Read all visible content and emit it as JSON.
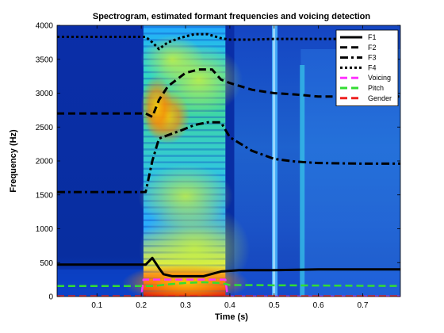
{
  "chart_data": {
    "type": "line",
    "title": "Spectrogram, estimated formant frequencies and voicing detection",
    "xlabel": "Time (s)",
    "ylabel": "Frequency (Hz)",
    "xlim": [
      0.01,
      0.785
    ],
    "ylim": [
      0,
      4000
    ],
    "xticks": [
      0.1,
      0.2,
      0.3,
      0.4,
      0.5,
      0.6,
      0.7
    ],
    "yticks": [
      0,
      500,
      1000,
      1500,
      2000,
      2500,
      3000,
      3500,
      4000
    ],
    "x_tick_labels": [
      "0.1",
      "0.2",
      "0.3",
      "0.4",
      "0.5",
      "0.6",
      "0.7"
    ],
    "y_tick_labels": [
      "0",
      "500",
      "1000",
      "1500",
      "2000",
      "2500",
      "3000",
      "3500",
      "4000"
    ],
    "background": "spectrogram",
    "legend_position": "top-right",
    "series": [
      {
        "name": "F1",
        "color": "#000000",
        "style": "solid",
        "x": [
          0.01,
          0.21,
          0.225,
          0.24,
          0.25,
          0.27,
          0.3,
          0.34,
          0.38,
          0.42,
          0.5,
          0.6,
          0.7,
          0.785
        ],
        "y": [
          470,
          470,
          570,
          420,
          330,
          300,
          300,
          300,
          370,
          390,
          390,
          400,
          400,
          400
        ]
      },
      {
        "name": "F2",
        "color": "#000000",
        "style": "dashed",
        "x": [
          0.01,
          0.21,
          0.225,
          0.24,
          0.26,
          0.28,
          0.3,
          0.33,
          0.36,
          0.38,
          0.4,
          0.45,
          0.5,
          0.55,
          0.6,
          0.7,
          0.785
        ],
        "y": [
          2700,
          2700,
          2650,
          2900,
          3100,
          3200,
          3300,
          3350,
          3350,
          3200,
          3150,
          3050,
          3000,
          2980,
          2950,
          2950,
          2950
        ]
      },
      {
        "name": "F3",
        "color": "#000000",
        "style": "dashdot",
        "x": [
          0.01,
          0.21,
          0.225,
          0.24,
          0.26,
          0.29,
          0.32,
          0.35,
          0.38,
          0.4,
          0.45,
          0.5,
          0.55,
          0.6,
          0.7,
          0.785
        ],
        "y": [
          1540,
          1540,
          2000,
          2330,
          2380,
          2450,
          2530,
          2570,
          2570,
          2350,
          2150,
          2030,
          1990,
          1970,
          1960,
          1960
        ]
      },
      {
        "name": "F4",
        "color": "#000000",
        "style": "dotted",
        "x": [
          0.01,
          0.21,
          0.225,
          0.24,
          0.26,
          0.29,
          0.32,
          0.35,
          0.38,
          0.4,
          0.45,
          0.5,
          0.6,
          0.7,
          0.785
        ],
        "y": [
          3830,
          3830,
          3750,
          3650,
          3750,
          3820,
          3870,
          3870,
          3810,
          3790,
          3790,
          3800,
          3800,
          3800,
          3800
        ]
      },
      {
        "name": "Voicing",
        "color": "#ff33ff",
        "style": "dashed",
        "x": [
          0.01,
          0.2,
          0.205,
          0.39,
          0.395,
          0.785
        ],
        "y": [
          0,
          0,
          250,
          250,
          0,
          0
        ]
      },
      {
        "name": "Pitch",
        "color": "#33dd33",
        "style": "dashed",
        "x": [
          0.01,
          0.2,
          0.23,
          0.26,
          0.3,
          0.34,
          0.38,
          0.4,
          0.785
        ],
        "y": [
          155,
          155,
          155,
          180,
          200,
          210,
          200,
          170,
          155
        ]
      },
      {
        "name": "Gender",
        "color": "#ee2222",
        "style": "dashed",
        "x": [
          0.01,
          0.785
        ],
        "y": [
          5,
          5
        ]
      }
    ]
  }
}
